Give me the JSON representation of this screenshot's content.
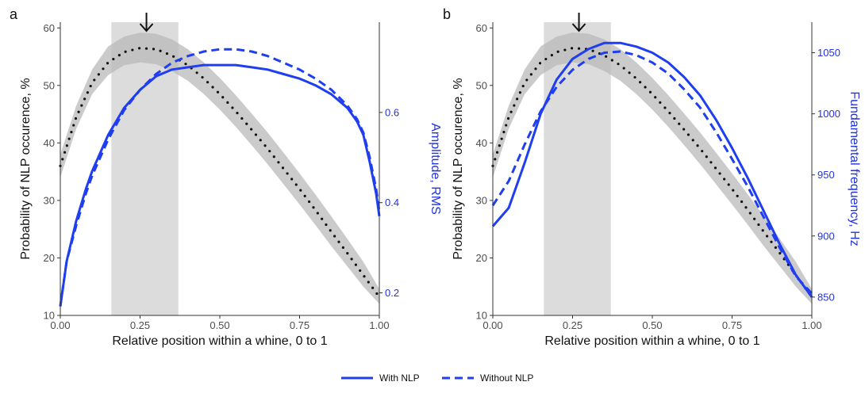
{
  "chart_data": [
    {
      "type": "line",
      "panel_label": "a",
      "xlabel": "Relative position within a whine, 0 to 1",
      "ylabel": "Probability of NLP occurence, %",
      "y2label": "Amplitude, RMS",
      "xlim": [
        0,
        1
      ],
      "ylim": [
        10,
        61
      ],
      "y2lim": [
        0.15,
        0.8
      ],
      "xticks": [
        "0.00",
        "0.25",
        "0.50",
        "0.75",
        "1.00"
      ],
      "yticks": [
        "10",
        "20",
        "30",
        "40",
        "50",
        "60"
      ],
      "y2ticks": [
        "0.2",
        "0.4",
        "0.6"
      ],
      "highlight_band": [
        0.16,
        0.37
      ],
      "arrow_x": 0.27,
      "nlp_probability": {
        "x": [
          0,
          0.05,
          0.1,
          0.15,
          0.2,
          0.25,
          0.3,
          0.35,
          0.4,
          0.45,
          0.5,
          0.55,
          0.6,
          0.65,
          0.7,
          0.75,
          0.8,
          0.85,
          0.9,
          0.95,
          1.0
        ],
        "y": [
          36,
          44.5,
          50.5,
          54,
          55.8,
          56.5,
          56.3,
          55.2,
          53.5,
          51.2,
          48.5,
          45.5,
          42.3,
          39,
          35.5,
          32,
          28.3,
          24.5,
          20.8,
          17,
          13.2
        ],
        "lower": [
          34,
          42.5,
          48.5,
          51.8,
          53.5,
          54,
          53.7,
          52.5,
          50.8,
          48.5,
          45.8,
          42.8,
          39.6,
          36.3,
          32.8,
          29.3,
          25.7,
          22,
          18.5,
          15,
          12
        ],
        "upper": [
          38,
          46.5,
          52.8,
          56.8,
          58.5,
          59.2,
          59,
          58,
          56.3,
          54,
          51.3,
          48.3,
          45.1,
          41.8,
          38.3,
          34.7,
          31,
          27.2,
          23.3,
          19.3,
          14.6
        ]
      },
      "series": [
        {
          "name": "With NLP",
          "style": "solid",
          "x": [
            0,
            0.02,
            0.05,
            0.08,
            0.1,
            0.15,
            0.2,
            0.25,
            0.3,
            0.35,
            0.4,
            0.45,
            0.5,
            0.55,
            0.6,
            0.65,
            0.7,
            0.75,
            0.8,
            0.85,
            0.9,
            0.93,
            0.95,
            0.97,
            0.99,
            1.0
          ],
          "y": [
            0.17,
            0.27,
            0.36,
            0.43,
            0.47,
            0.55,
            0.61,
            0.65,
            0.68,
            0.695,
            0.7,
            0.705,
            0.705,
            0.705,
            0.7,
            0.695,
            0.685,
            0.675,
            0.66,
            0.64,
            0.61,
            0.58,
            0.55,
            0.49,
            0.42,
            0.37
          ]
        },
        {
          "name": "Without NLP",
          "style": "dashed",
          "x": [
            0,
            0.02,
            0.05,
            0.08,
            0.1,
            0.15,
            0.2,
            0.25,
            0.3,
            0.35,
            0.4,
            0.45,
            0.5,
            0.55,
            0.6,
            0.65,
            0.7,
            0.75,
            0.8,
            0.85,
            0.9,
            0.93,
            0.95,
            0.97,
            0.99,
            1.0
          ],
          "y": [
            0.17,
            0.27,
            0.35,
            0.42,
            0.46,
            0.54,
            0.605,
            0.65,
            0.685,
            0.71,
            0.725,
            0.735,
            0.74,
            0.74,
            0.735,
            0.725,
            0.71,
            0.695,
            0.675,
            0.65,
            0.615,
            0.585,
            0.555,
            0.5,
            0.43,
            0.38
          ]
        }
      ]
    },
    {
      "type": "line",
      "panel_label": "b",
      "xlabel": "Relative position within a whine, 0 to 1",
      "ylabel": "Probability of NLP occurence, %",
      "y2label": "Fundamental frequency, Hz",
      "xlim": [
        0,
        1
      ],
      "ylim": [
        10,
        61
      ],
      "y2lim": [
        835,
        1075
      ],
      "xticks": [
        "0.00",
        "0.25",
        "0.50",
        "0.75",
        "1.00"
      ],
      "yticks": [
        "10",
        "20",
        "30",
        "40",
        "50",
        "60"
      ],
      "y2ticks": [
        "850",
        "900",
        "950",
        "1000",
        "1050"
      ],
      "highlight_band": [
        0.16,
        0.37
      ],
      "arrow_x": 0.27,
      "nlp_probability": {
        "x": [
          0,
          0.05,
          0.1,
          0.15,
          0.2,
          0.25,
          0.3,
          0.35,
          0.4,
          0.45,
          0.5,
          0.55,
          0.6,
          0.65,
          0.7,
          0.75,
          0.8,
          0.85,
          0.9,
          0.95,
          1.0
        ],
        "y": [
          36,
          44.5,
          50.5,
          54,
          55.8,
          56.5,
          56.3,
          55.2,
          53.5,
          51.2,
          48.5,
          45.5,
          42.3,
          39,
          35.5,
          32,
          28.3,
          24.5,
          20.8,
          17,
          13.2
        ],
        "lower": [
          34,
          42.5,
          48.5,
          51.8,
          53.5,
          54,
          53.7,
          52.5,
          50.8,
          48.5,
          45.8,
          42.8,
          39.6,
          36.3,
          32.8,
          29.3,
          25.7,
          22,
          18.5,
          15,
          12
        ],
        "upper": [
          38,
          46.5,
          52.8,
          56.8,
          58.5,
          59.2,
          59,
          58,
          56.3,
          54,
          51.3,
          48.3,
          45.1,
          41.8,
          38.3,
          34.7,
          31,
          27.2,
          23.3,
          19.3,
          14.6
        ]
      },
      "series": [
        {
          "name": "With NLP",
          "style": "solid",
          "x": [
            0,
            0.05,
            0.1,
            0.15,
            0.2,
            0.25,
            0.3,
            0.35,
            0.4,
            0.45,
            0.5,
            0.55,
            0.6,
            0.65,
            0.7,
            0.75,
            0.8,
            0.85,
            0.9,
            0.95,
            1.0
          ],
          "y": [
            908,
            923,
            960,
            1000,
            1028,
            1045,
            1053,
            1058,
            1058,
            1055,
            1050,
            1042,
            1030,
            1015,
            995,
            972,
            947,
            920,
            893,
            868,
            850
          ]
        },
        {
          "name": "Without NLP",
          "style": "dashed",
          "x": [
            0,
            0.05,
            0.1,
            0.15,
            0.2,
            0.25,
            0.3,
            0.35,
            0.4,
            0.45,
            0.5,
            0.55,
            0.6,
            0.65,
            0.7,
            0.75,
            0.8,
            0.85,
            0.9,
            0.95,
            1.0
          ],
          "y": [
            925,
            945,
            975,
            1002,
            1022,
            1036,
            1045,
            1050,
            1051,
            1048,
            1042,
            1033,
            1020,
            1005,
            985,
            963,
            940,
            915,
            890,
            867,
            853
          ]
        }
      ]
    }
  ],
  "legend": {
    "position": "bottom",
    "items": [
      {
        "label": "With NLP",
        "style": "solid"
      },
      {
        "label": "Without NLP",
        "style": "dashed"
      }
    ]
  },
  "colors": {
    "series": "#1f3ef0",
    "band": "#dcdcdc",
    "ribbon": "#b9b9b9",
    "nlp_dots": "#111111",
    "axis_text": "#4d4d4d",
    "blue_text": "#2233dd"
  }
}
